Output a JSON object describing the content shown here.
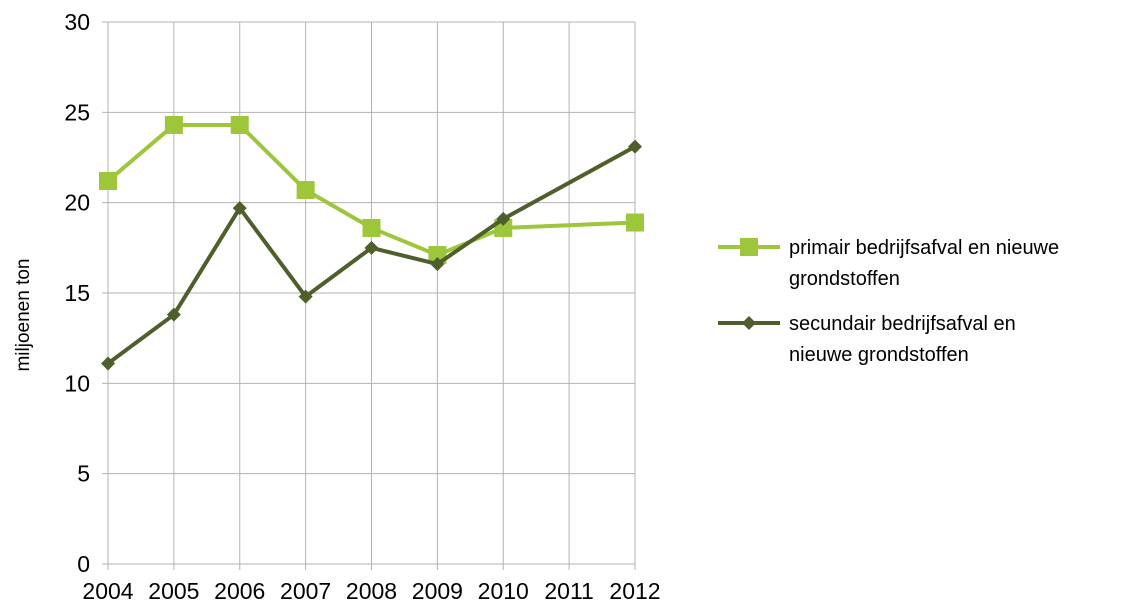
{
  "chart_data": {
    "type": "line",
    "title": "",
    "xlabel": "",
    "ylabel": "miljoenen ton",
    "x": [
      "2004",
      "2005",
      "2006",
      "2007",
      "2008",
      "2009",
      "2010",
      "2011",
      "2012"
    ],
    "ylim": [
      0,
      30
    ],
    "yticks": [
      "0",
      "5",
      "10",
      "15",
      "20",
      "25",
      "30"
    ],
    "grid": true,
    "legend_position": "right",
    "series": [
      {
        "name": "primair bedrijfsafval en nieuwe grondstoffen",
        "name_lines": [
          "primair bedrijfsafval en nieuwe",
          "grondstoffen"
        ],
        "color": "#9DC63A",
        "marker": "square",
        "points": [
          [
            0,
            21.2
          ],
          [
            1,
            24.3
          ],
          [
            2,
            24.3
          ],
          [
            3,
            20.7
          ],
          [
            4,
            18.6
          ],
          [
            5,
            17.1
          ],
          [
            6,
            18.6
          ],
          [
            8,
            18.9
          ]
        ]
      },
      {
        "name": "secundair bedrijfsafval en nieuwe grondstoffen",
        "name_lines": [
          "secundair bedrijfsafval en",
          "nieuwe grondstoffen"
        ],
        "color": "#4F5F2C",
        "marker": "diamond",
        "points": [
          [
            0,
            11.1
          ],
          [
            1,
            13.8
          ],
          [
            2,
            19.7
          ],
          [
            3,
            14.8
          ],
          [
            4,
            17.5
          ],
          [
            5,
            16.6
          ],
          [
            6,
            19.1
          ],
          [
            8,
            23.1
          ]
        ]
      }
    ]
  }
}
